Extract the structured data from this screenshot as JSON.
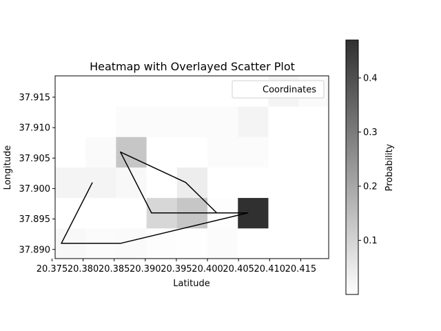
{
  "chart_data": {
    "type": "heatmap",
    "title": "Heatmap with Overlayed Scatter Plot",
    "xlabel": "Latitude",
    "ylabel": "Longitude",
    "xlim": [
      20.3755,
      20.4195
    ],
    "ylim": [
      37.8885,
      37.9185
    ],
    "x_ticks": [
      20.375,
      20.38,
      20.385,
      20.39,
      20.395,
      20.4,
      20.405,
      20.41,
      20.415
    ],
    "x_tick_labels": [
      "20.375",
      "20.380",
      "20.385",
      "20.390",
      "20.395",
      "20.400",
      "20.405",
      "20.410",
      "20.415"
    ],
    "y_ticks": [
      37.89,
      37.895,
      37.9,
      37.905,
      37.91,
      37.915
    ],
    "y_tick_labels": [
      "37.890",
      "37.895",
      "37.900",
      "37.905",
      "37.910",
      "37.915"
    ],
    "grid": false,
    "heatmap": {
      "x_edges": [
        20.3755,
        20.3804,
        20.3853,
        20.3902,
        20.3951,
        20.4,
        20.4049,
        20.4098,
        20.4147,
        20.4195
      ],
      "y_edges": [
        37.8885,
        37.8935,
        37.8985,
        37.9035,
        37.9085,
        37.9135,
        37.9185
      ],
      "values": [
        [
          0.015,
          0.008,
          0.012,
          0.005,
          0.003,
          0.01,
          0.0,
          0.0,
          0.0
        ],
        [
          0.0,
          0.0,
          0.0,
          0.09,
          0.13,
          0.005,
          0.47,
          0.0,
          0.0
        ],
        [
          0.025,
          0.025,
          0.015,
          0.0,
          0.04,
          0.0,
          0.0,
          0.0,
          0.0
        ],
        [
          0.0,
          0.012,
          0.13,
          0.0,
          0.0,
          0.01,
          0.01,
          0.0,
          0.0
        ],
        [
          0.0,
          0.0,
          0.01,
          0.01,
          0.01,
          0.01,
          0.025,
          0.0,
          0.0
        ],
        [
          0.0,
          0.0,
          0.0,
          0.0,
          0.0,
          0.0,
          0.0,
          0.025,
          0.012
        ]
      ]
    },
    "series": [
      {
        "type": "line",
        "color": "#000000",
        "x": [
          20.3815,
          20.3765,
          20.386,
          20.4065,
          20.391,
          20.386,
          20.3965,
          20.4015
        ],
        "y": [
          37.901,
          37.891,
          37.891,
          37.896,
          37.896,
          37.906,
          37.901,
          37.896
        ]
      }
    ],
    "legend": {
      "entries": [
        "Coordinates"
      ],
      "placement": "upper right"
    },
    "colorbar": {
      "label": "Probability",
      "range": [
        0.0,
        0.47
      ],
      "ticks": [
        0.1,
        0.2,
        0.3,
        0.4
      ],
      "tick_labels": [
        "0.1",
        "0.2",
        "0.3",
        "0.4"
      ],
      "colormap": "Greys",
      "color_low": "#ffffff",
      "color_high": "#303030"
    }
  }
}
